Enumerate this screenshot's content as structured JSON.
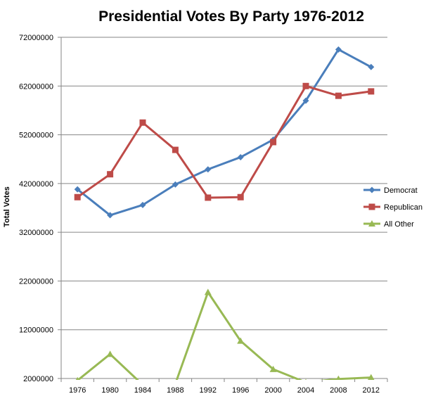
{
  "chart_data": {
    "type": "line",
    "title": "Presidential Votes By Party 1976-2012",
    "xlabel": "",
    "ylabel": "Total Votes",
    "categories": [
      "1976",
      "1980",
      "1984",
      "1988",
      "1992",
      "1996",
      "2000",
      "2004",
      "2008",
      "2012"
    ],
    "y_ticks": [
      "2000000",
      "12000000",
      "22000000",
      "32000000",
      "42000000",
      "52000000",
      "62000000",
      "72000000"
    ],
    "ylim": [
      2000000,
      72000000
    ],
    "grid": true,
    "legend_position": "right",
    "series": [
      {
        "name": "Democrat",
        "color": "#4a7ebb",
        "marker": "diamond",
        "values": [
          40800000,
          35500000,
          37600000,
          41800000,
          44900000,
          47400000,
          51000000,
          59000000,
          69500000,
          65900000
        ]
      },
      {
        "name": "Republican",
        "color": "#be4b48",
        "marker": "square",
        "values": [
          39200000,
          43900000,
          54500000,
          48900000,
          39100000,
          39200000,
          50500000,
          62000000,
          60000000,
          60900000
        ]
      },
      {
        "name": "All Other",
        "color": "#98b954",
        "marker": "triangle",
        "values": [
          1600000,
          7000000,
          700000,
          900000,
          19700000,
          9700000,
          3900000,
          1200000,
          1900000,
          2200000
        ]
      }
    ]
  }
}
